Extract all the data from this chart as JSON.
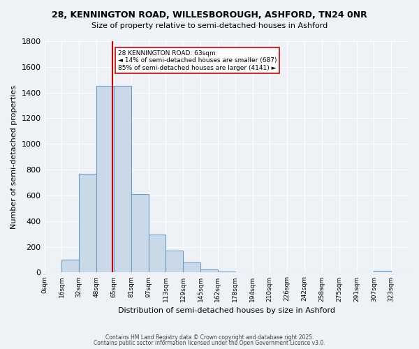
{
  "title_line1": "28, KENNINGTON ROAD, WILLESBOROUGH, ASHFORD, TN24 0NR",
  "title_line2": "Size of property relative to semi-detached houses in Ashford",
  "xlabel": "Distribution of semi-detached houses by size in Ashford",
  "ylabel": "Number of semi-detached properties",
  "bin_edges": [
    0,
    16,
    32,
    48,
    64,
    80,
    96,
    112,
    128,
    144,
    160,
    176,
    192,
    208,
    224,
    240,
    256,
    272,
    288,
    304,
    320,
    336
  ],
  "bar_heights": [
    5,
    100,
    770,
    1450,
    1450,
    610,
    295,
    170,
    80,
    25,
    10,
    2,
    1,
    1,
    0,
    0,
    0,
    0,
    0,
    15,
    0
  ],
  "bar_color": "#c9d9e8",
  "bar_edgecolor": "#6b9ec8",
  "property_size": 63,
  "property_label": "28 KENNINGTON ROAD: 63sqm",
  "smaller_pct": 14,
  "smaller_count": 687,
  "larger_pct": 85,
  "larger_count": 4141,
  "annotation_color": "#cc0000",
  "ylim": [
    0,
    1800
  ],
  "yticks": [
    0,
    200,
    400,
    600,
    800,
    1000,
    1200,
    1400,
    1600,
    1800
  ],
  "xtick_positions": [
    0,
    16,
    32,
    48,
    64,
    80,
    96,
    112,
    128,
    144,
    160,
    176,
    192,
    208,
    224,
    240,
    256,
    272,
    288,
    304,
    320
  ],
  "xtick_labels": [
    "0sqm",
    "16sqm",
    "32sqm",
    "48sqm",
    "65sqm",
    "81sqm",
    "97sqm",
    "113sqm",
    "129sqm",
    "145sqm",
    "162sqm",
    "178sqm",
    "194sqm",
    "210sqm",
    "226sqm",
    "242sqm",
    "258sqm",
    "275sqm",
    "291sqm",
    "307sqm",
    "323sqm"
  ],
  "xlim": [
    0,
    336
  ],
  "background_color": "#eef2f7",
  "grid_color": "#ffffff",
  "footer_line1": "Contains HM Land Registry data © Crown copyright and database right 2025.",
  "footer_line2": "Contains public sector information licensed under the Open Government Licence v3.0."
}
